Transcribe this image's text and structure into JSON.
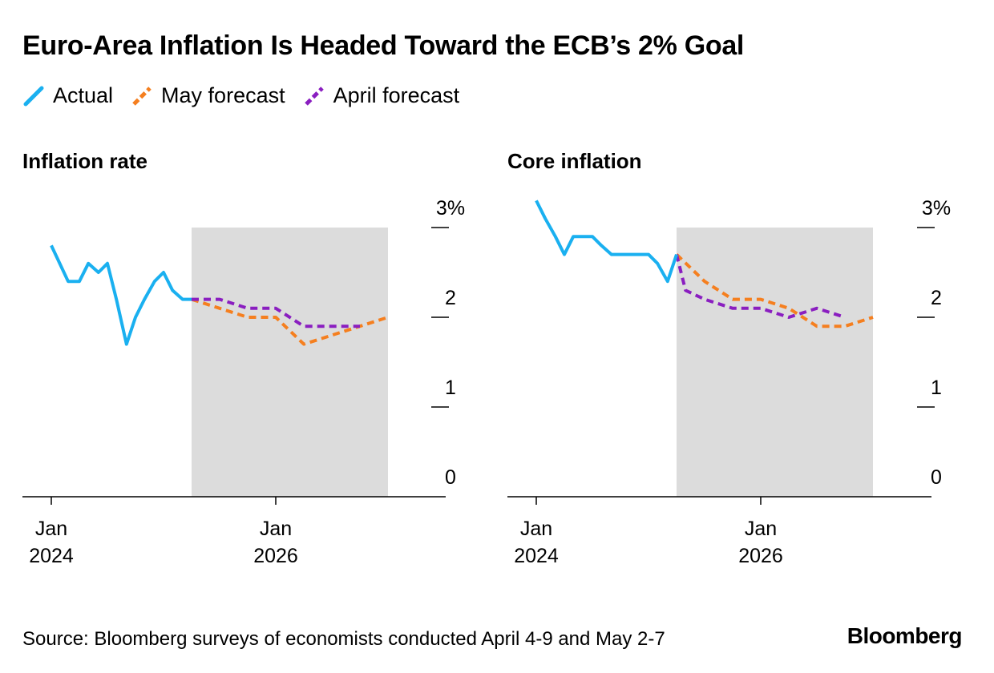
{
  "title": "Euro-Area Inflation Is Headed Toward the ECB’s 2% Goal",
  "legend": [
    {
      "name": "Actual",
      "color": "#1ab0f0",
      "dash": false
    },
    {
      "name": "May forecast",
      "color": "#f57f1f",
      "dash": true
    },
    {
      "name": "April forecast",
      "color": "#8a1ec0",
      "dash": true
    }
  ],
  "source": "Source: Bloomberg surveys of economists conducted April 4-9 and May 2-7",
  "brand": "Bloomberg",
  "chart_data": [
    {
      "type": "line",
      "title": "Inflation rate",
      "x_ticks": [
        {
          "x": 2024.0,
          "line1": "Jan",
          "line2": "2024"
        },
        {
          "x": 2026.0,
          "line1": "Jan",
          "line2": "2026"
        }
      ],
      "y_ticks": [
        {
          "y": 3,
          "label": "3%"
        },
        {
          "y": 2,
          "label": "2"
        },
        {
          "y": 1,
          "label": "1"
        },
        {
          "y": 0,
          "label": "0"
        }
      ],
      "xlim": [
        2023.75,
        2027.5
      ],
      "ylim": [
        0,
        3
      ],
      "forecast_shading": {
        "from": 2025.25,
        "to": 2027.0,
        "color": "#dcdcdc"
      },
      "series": [
        {
          "name": "Actual",
          "color": "#1ab0f0",
          "dashed": false,
          "x": [
            2024.0,
            2024.15,
            2024.25,
            2024.33,
            2024.42,
            2024.5,
            2024.58,
            2024.67,
            2024.75,
            2024.83,
            2024.92,
            2025.0,
            2025.08,
            2025.17,
            2025.25
          ],
          "y": [
            2.8,
            2.4,
            2.4,
            2.6,
            2.5,
            2.6,
            2.2,
            1.7,
            2.0,
            2.2,
            2.4,
            2.5,
            2.3,
            2.2,
            2.2
          ]
        },
        {
          "name": "May forecast",
          "color": "#f57f1f",
          "dashed": true,
          "x": [
            2025.25,
            2025.5,
            2025.75,
            2026.0,
            2026.25,
            2026.5,
            2026.75,
            2027.0
          ],
          "y": [
            2.2,
            2.1,
            2.0,
            2.0,
            1.7,
            1.8,
            1.9,
            2.0
          ]
        },
        {
          "name": "April forecast",
          "color": "#8a1ec0",
          "dashed": true,
          "x": [
            2025.25,
            2025.5,
            2025.75,
            2026.0,
            2026.25,
            2026.5,
            2026.75
          ],
          "y": [
            2.2,
            2.2,
            2.1,
            2.1,
            1.9,
            1.9,
            1.9
          ]
        }
      ]
    },
    {
      "type": "line",
      "title": "Core inflation",
      "x_ticks": [
        {
          "x": 2024.0,
          "line1": "Jan",
          "line2": "2024"
        },
        {
          "x": 2026.0,
          "line1": "Jan",
          "line2": "2026"
        }
      ],
      "y_ticks": [
        {
          "y": 3,
          "label": "3%"
        },
        {
          "y": 2,
          "label": "2"
        },
        {
          "y": 1,
          "label": "1"
        },
        {
          "y": 0,
          "label": "0"
        }
      ],
      "xlim": [
        2023.75,
        2027.5
      ],
      "ylim": [
        0,
        3
      ],
      "forecast_shading": {
        "from": 2025.25,
        "to": 2027.0,
        "color": "#dcdcdc"
      },
      "series": [
        {
          "name": "Actual",
          "color": "#1ab0f0",
          "dashed": false,
          "x": [
            2024.0,
            2024.08,
            2024.17,
            2024.25,
            2024.33,
            2024.42,
            2024.5,
            2024.58,
            2024.67,
            2024.75,
            2024.83,
            2024.92,
            2025.0,
            2025.08,
            2025.17,
            2025.25
          ],
          "y": [
            3.3,
            3.1,
            2.9,
            2.7,
            2.9,
            2.9,
            2.9,
            2.8,
            2.7,
            2.7,
            2.7,
            2.7,
            2.7,
            2.6,
            2.4,
            2.7
          ]
        },
        {
          "name": "May forecast",
          "color": "#f57f1f",
          "dashed": true,
          "x": [
            2025.25,
            2025.5,
            2025.75,
            2026.0,
            2026.25,
            2026.5,
            2026.75,
            2027.0
          ],
          "y": [
            2.7,
            2.4,
            2.2,
            2.2,
            2.1,
            1.9,
            1.9,
            2.0
          ]
        },
        {
          "name": "April forecast",
          "color": "#8a1ec0",
          "dashed": true,
          "x": [
            2025.25,
            2025.33,
            2025.5,
            2025.75,
            2026.0,
            2026.25,
            2026.5,
            2026.75
          ],
          "y": [
            2.7,
            2.3,
            2.2,
            2.1,
            2.1,
            2.0,
            2.1,
            2.0
          ]
        }
      ]
    }
  ]
}
